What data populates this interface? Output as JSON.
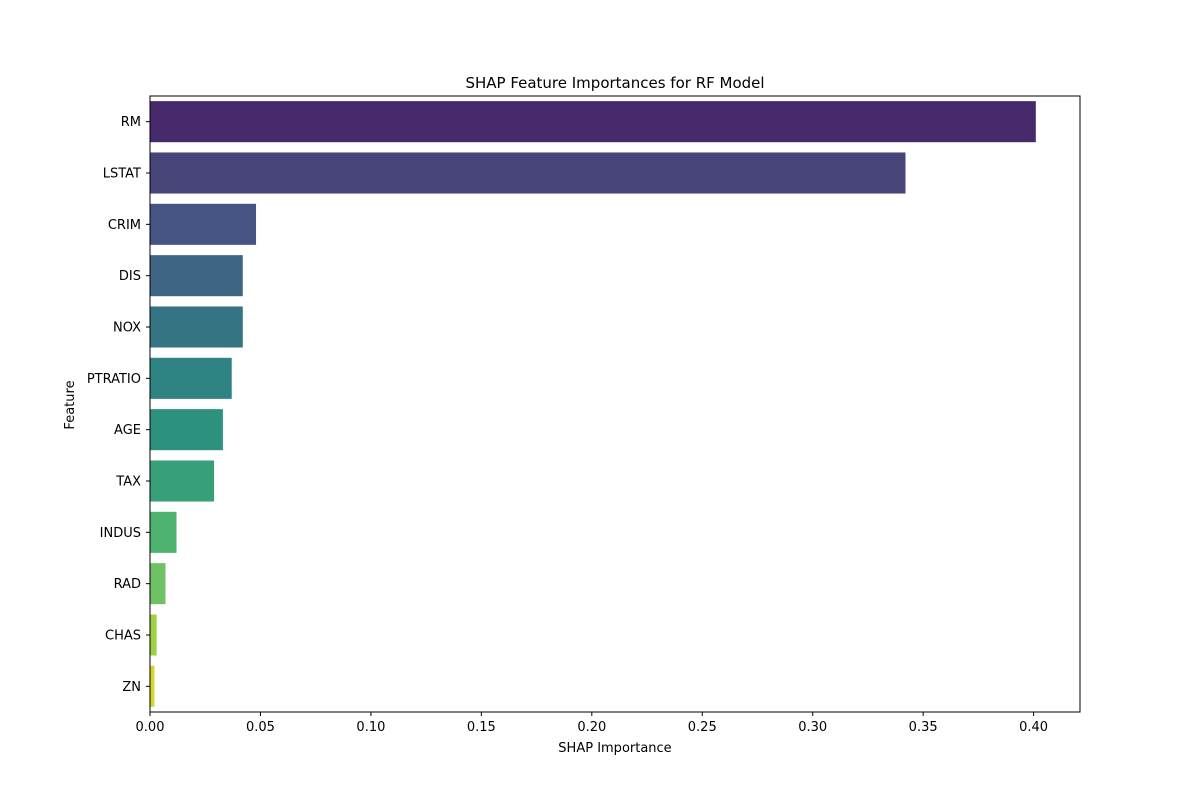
{
  "chart_data": {
    "type": "bar",
    "orientation": "horizontal",
    "title": "SHAP Feature Importances for RF Model",
    "xlabel": "SHAP Importance",
    "ylabel": "Feature",
    "categories": [
      "RM",
      "LSTAT",
      "CRIM",
      "DIS",
      "NOX",
      "PTRATIO",
      "AGE",
      "TAX",
      "INDUS",
      "RAD",
      "CHAS",
      "ZN"
    ],
    "values": [
      0.401,
      0.342,
      0.048,
      0.042,
      0.042,
      0.037,
      0.033,
      0.029,
      0.012,
      0.007,
      0.003,
      0.002
    ],
    "colors": [
      "#472a6b",
      "#474479",
      "#455482",
      "#3e6584",
      "#357583",
      "#2e8382",
      "#2c917f",
      "#37a079",
      "#4fb370",
      "#6ec264",
      "#9ed142",
      "#d2d729"
    ],
    "xlim": [
      0,
      0.421
    ],
    "xticks": [
      0.0,
      0.05,
      0.1,
      0.15,
      0.2,
      0.25,
      0.3,
      0.35,
      0.4
    ],
    "xtick_labels": [
      "0.00",
      "0.05",
      "0.10",
      "0.15",
      "0.20",
      "0.25",
      "0.30",
      "0.35",
      "0.40"
    ],
    "grid": false,
    "legend": false
  }
}
